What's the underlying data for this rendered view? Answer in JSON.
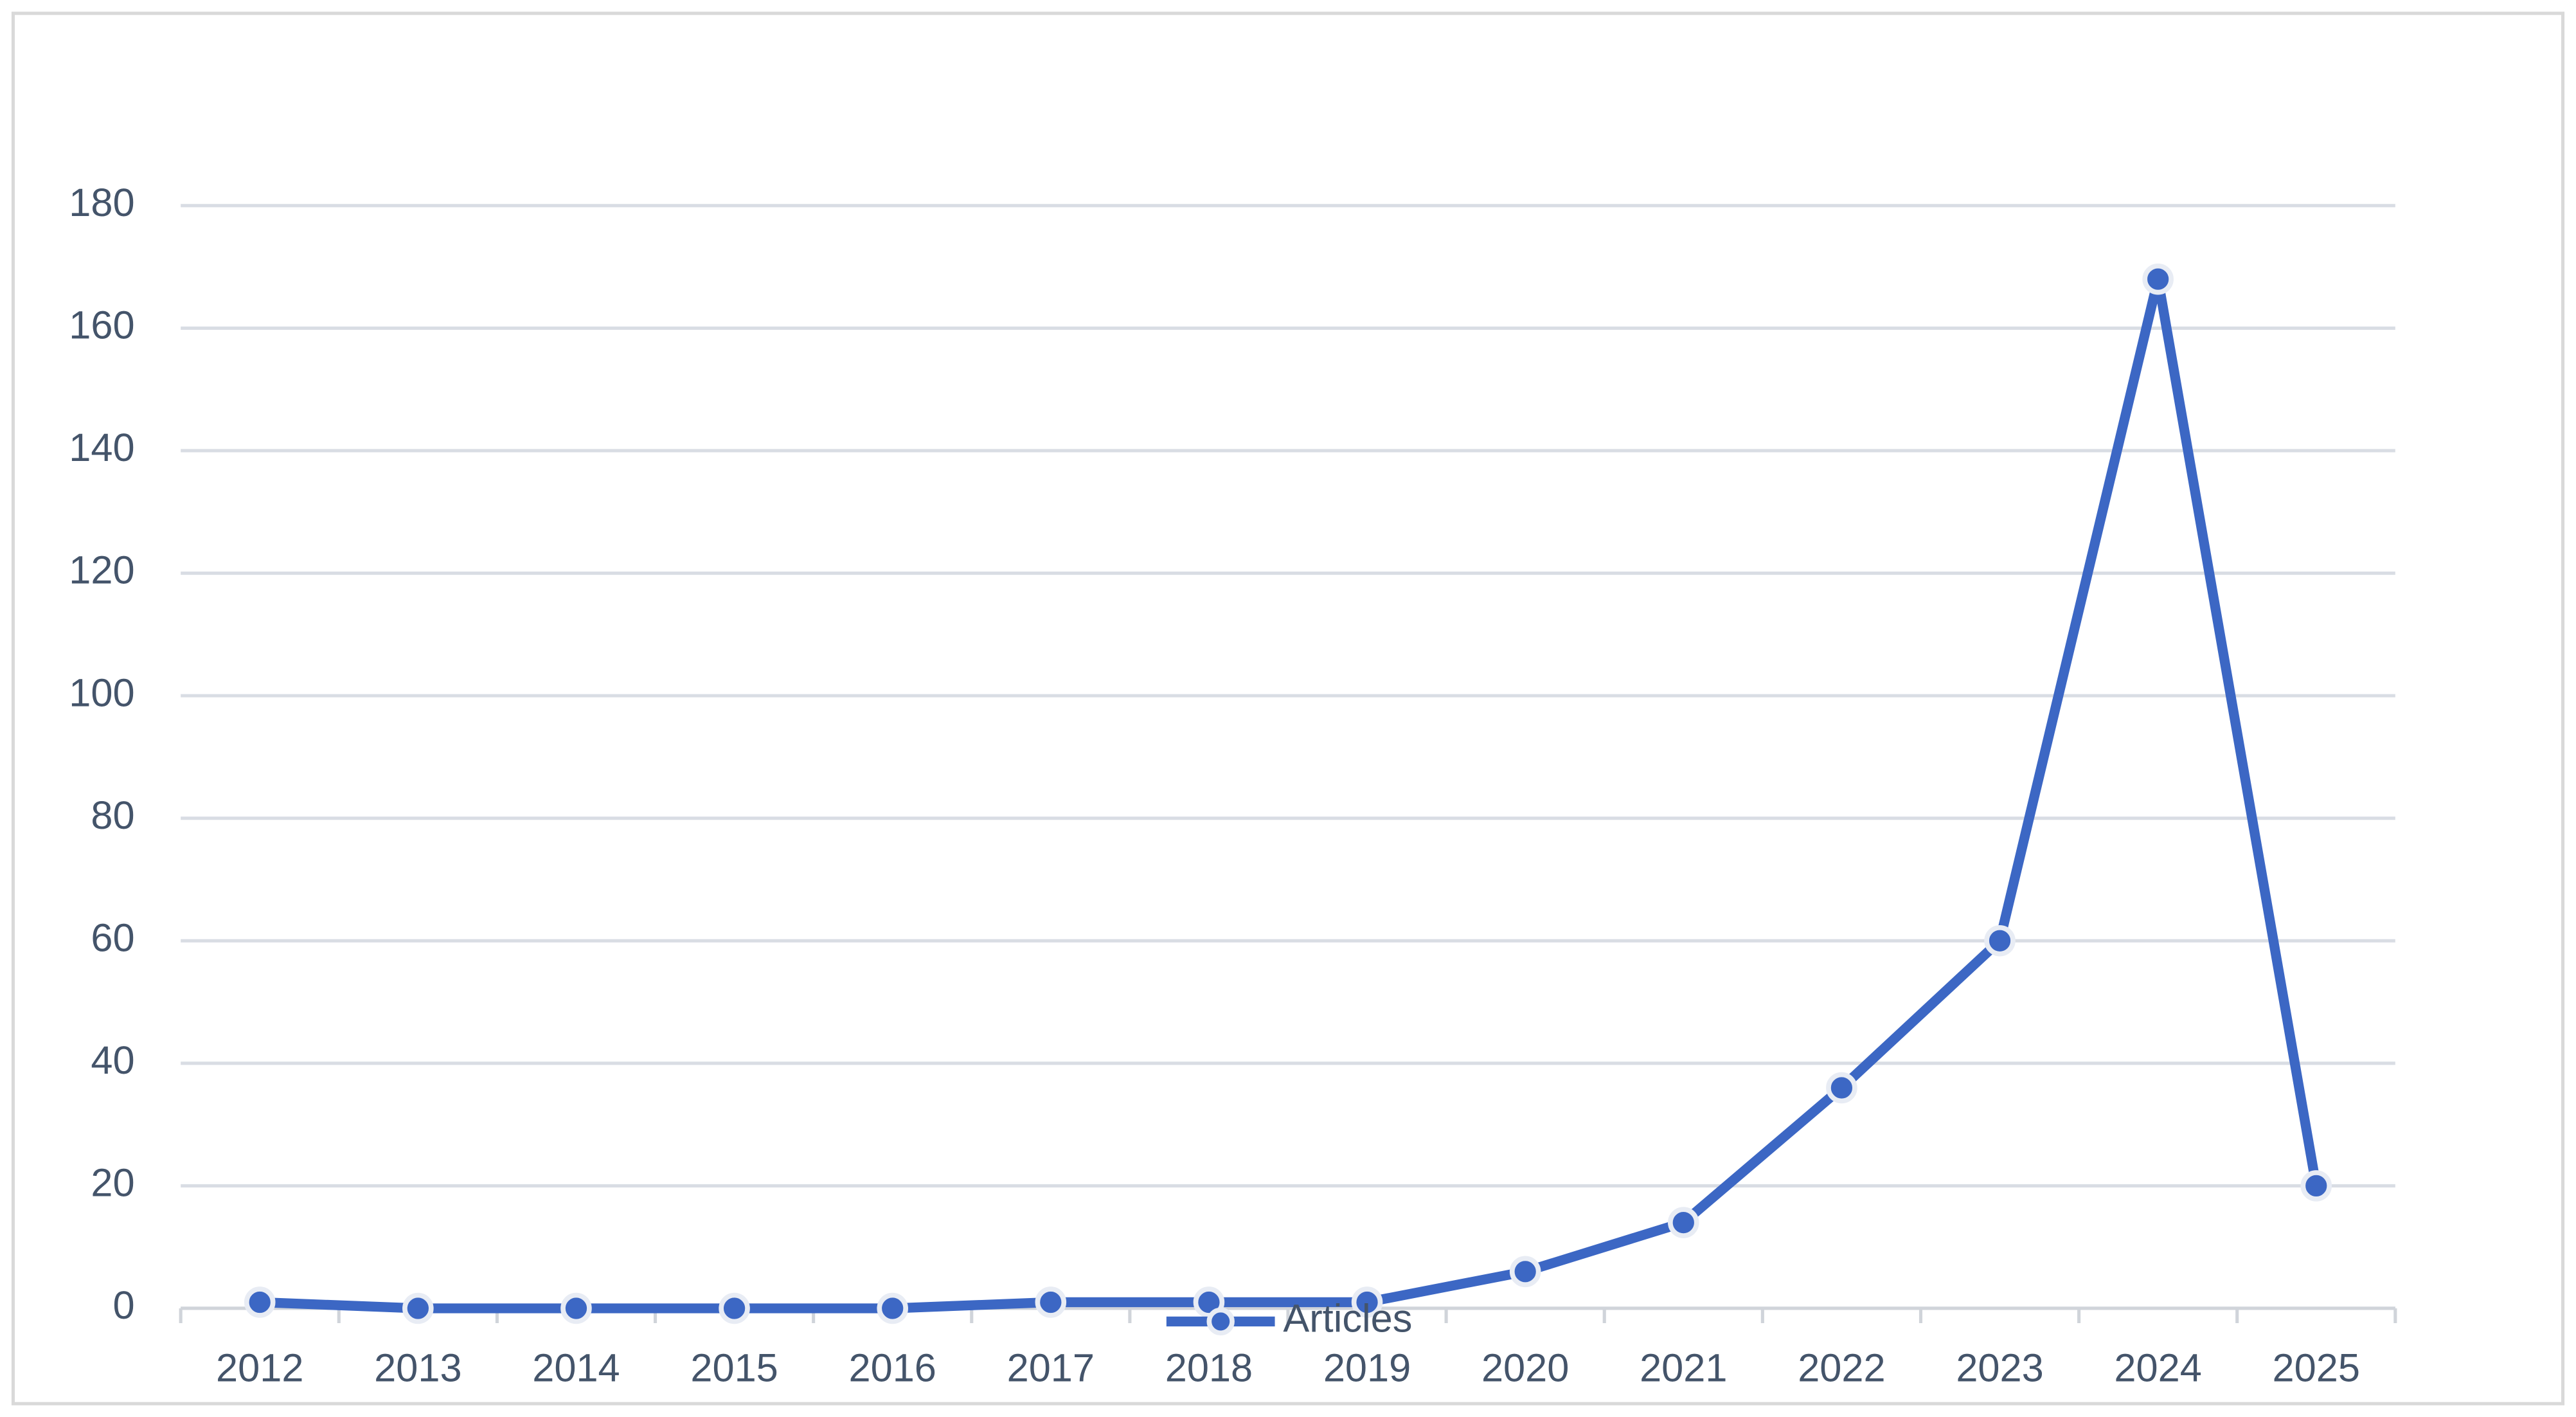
{
  "chart_data": {
    "type": "line",
    "categories": [
      "2012",
      "2013",
      "2014",
      "2015",
      "2016",
      "2017",
      "2018",
      "2019",
      "2020",
      "2021",
      "2022",
      "2023",
      "2024",
      "2025"
    ],
    "series": [
      {
        "name": "Articles",
        "color": "#3c67c4",
        "values": [
          1,
          0,
          0,
          0,
          0,
          1,
          1,
          1,
          6,
          14,
          36,
          60,
          168,
          20
        ]
      }
    ],
    "ylim": [
      0,
      180
    ],
    "yticks": [
      0,
      20,
      40,
      60,
      80,
      100,
      120,
      140,
      160,
      180
    ],
    "grid": true,
    "legend": "bottom"
  }
}
